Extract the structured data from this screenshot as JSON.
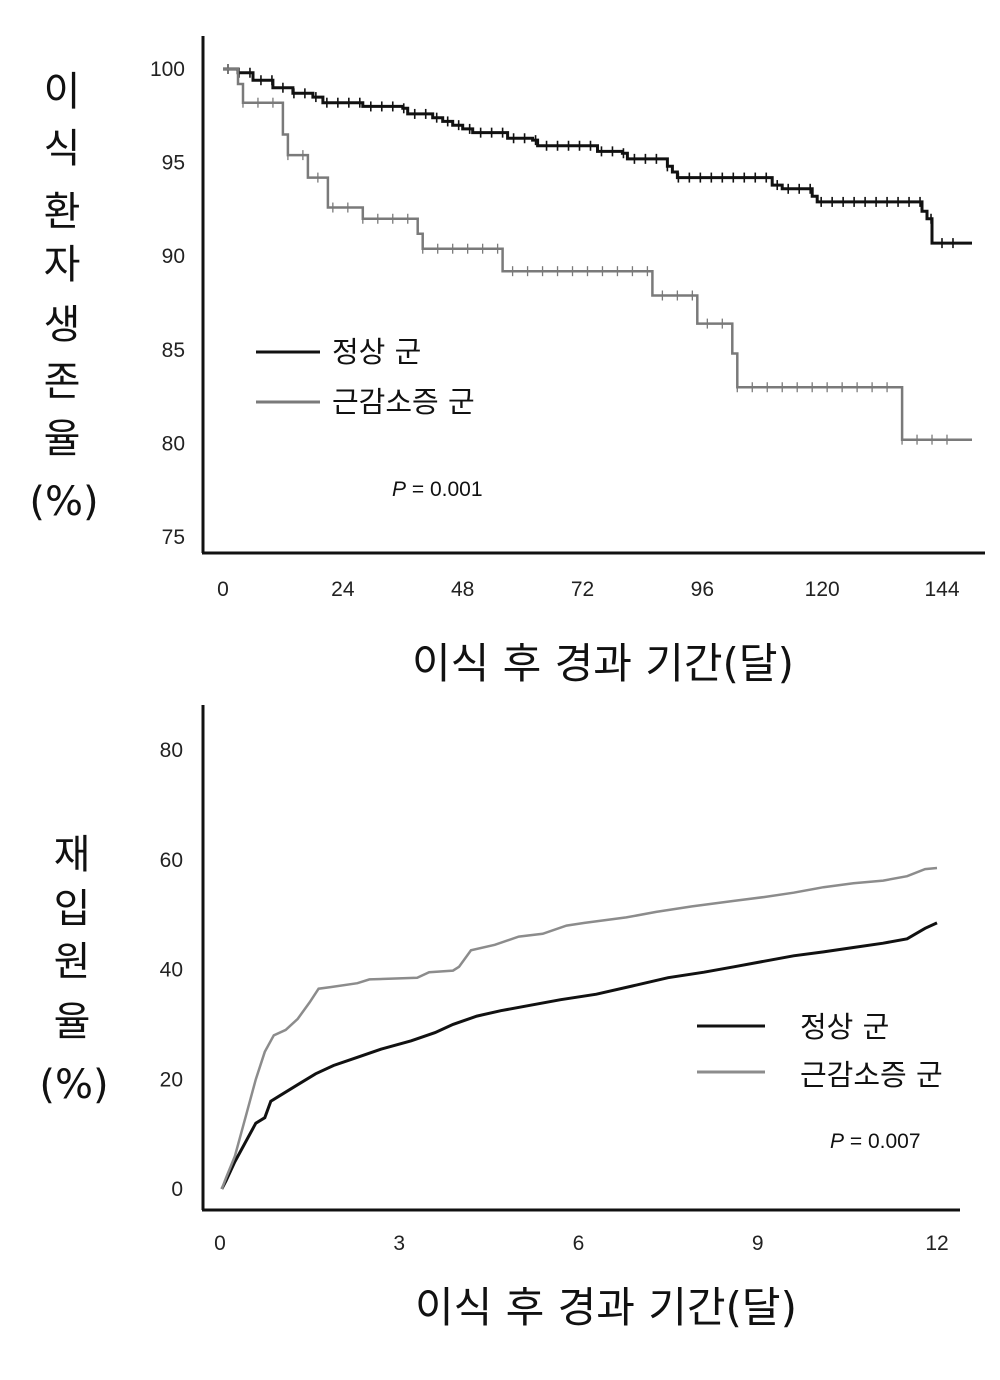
{
  "chart_data": [
    {
      "type": "line",
      "xlabel": "이식 후 경과 기간(달)",
      "ylabel_lines": [
        "이",
        "식",
        "환",
        "자",
        "생",
        "존",
        "율",
        "(%)"
      ],
      "xlim": [
        0,
        144
      ],
      "ylim": [
        75,
        100
      ],
      "x_ticks": [
        0,
        24,
        48,
        72,
        96,
        120,
        144
      ],
      "y_ticks": [
        100,
        95,
        90,
        85,
        80,
        75
      ],
      "legend_position": "middle-left",
      "annotation": {
        "p_label": "P",
        "p_value": " = 0.001"
      },
      "series": [
        {
          "name": "정상 군",
          "color": "#111111",
          "values": [
            [
              0,
              100
            ],
            [
              3,
              99.8
            ],
            [
              6,
              99.4
            ],
            [
              10,
              99
            ],
            [
              14,
              98.7
            ],
            [
              18,
              98.5
            ],
            [
              20,
              98.2
            ],
            [
              27,
              98.2
            ],
            [
              28,
              98.0
            ],
            [
              36,
              97.9
            ],
            [
              37,
              97.6
            ],
            [
              42,
              97.4
            ],
            [
              44,
              97.2
            ],
            [
              46,
              97.0
            ],
            [
              48,
              96.8
            ],
            [
              50,
              96.6
            ],
            [
              56,
              96.6
            ],
            [
              57,
              96.3
            ],
            [
              62,
              96.2
            ],
            [
              63,
              95.9
            ],
            [
              74,
              95.9
            ],
            [
              75,
              95.6
            ],
            [
              80,
              95.5
            ],
            [
              81,
              95.2
            ],
            [
              88,
              95.2
            ],
            [
              89,
              94.8
            ],
            [
              90,
              94.5
            ],
            [
              91,
              94.2
            ],
            [
              108,
              94.2
            ],
            [
              110,
              93.8
            ],
            [
              112,
              93.6
            ],
            [
              117,
              93.6
            ],
            [
              118,
              93.2
            ],
            [
              119,
              92.9
            ],
            [
              139,
              92.9
            ],
            [
              140,
              92.4
            ],
            [
              141,
              92.0
            ],
            [
              142,
              90.7
            ],
            [
              150,
              90.7
            ]
          ]
        },
        {
          "name": "근감소증 군",
          "color": "#7a7a7a",
          "values": [
            [
              0,
              100
            ],
            [
              3,
              99.2
            ],
            [
              4,
              98.2
            ],
            [
              11,
              98.2
            ],
            [
              12,
              96.5
            ],
            [
              13,
              95.4
            ],
            [
              16,
              95.4
            ],
            [
              17,
              94.2
            ],
            [
              20,
              94.2
            ],
            [
              21,
              92.6
            ],
            [
              27,
              92.6
            ],
            [
              28,
              92.0
            ],
            [
              38,
              92.0
            ],
            [
              39,
              91.2
            ],
            [
              40,
              90.4
            ],
            [
              55,
              90.4
            ],
            [
              56,
              89.2
            ],
            [
              85,
              89.2
            ],
            [
              86,
              87.9
            ],
            [
              94,
              87.9
            ],
            [
              95,
              86.4
            ],
            [
              101,
              86.4
            ],
            [
              102,
              84.8
            ],
            [
              103,
              83.0
            ],
            [
              135,
              83.0
            ],
            [
              136,
              80.2
            ],
            [
              150,
              80.2
            ]
          ]
        }
      ]
    },
    {
      "type": "line",
      "xlabel": "이식 후 경과 기간(달)",
      "ylabel_lines": [
        "재",
        "입",
        "원",
        "율",
        "(%)"
      ],
      "xlim": [
        0,
        12
      ],
      "ylim": [
        0,
        80
      ],
      "x_ticks": [
        0,
        3,
        6,
        9,
        12
      ],
      "y_ticks": [
        80,
        60,
        40,
        20,
        0
      ],
      "legend_position": "right",
      "annotation": {
        "p_label": "P",
        "p_value": " = 0.007"
      },
      "series": [
        {
          "name": "정상 군",
          "color": "#111111",
          "values": [
            [
              0.03,
              0
            ],
            [
              0.1,
              1.5
            ],
            [
              0.25,
              5
            ],
            [
              0.4,
              8
            ],
            [
              0.6,
              12
            ],
            [
              0.75,
              13
            ],
            [
              0.85,
              16
            ],
            [
              1.0,
              17
            ],
            [
              1.3,
              19
            ],
            [
              1.6,
              21
            ],
            [
              1.9,
              22.5
            ],
            [
              2.3,
              24
            ],
            [
              2.7,
              25.5
            ],
            [
              3.2,
              27
            ],
            [
              3.6,
              28.5
            ],
            [
              3.9,
              30
            ],
            [
              4.3,
              31.5
            ],
            [
              4.7,
              32.5
            ],
            [
              5.2,
              33.5
            ],
            [
              5.7,
              34.5
            ],
            [
              6.3,
              35.5
            ],
            [
              6.9,
              37
            ],
            [
              7.5,
              38.5
            ],
            [
              8.1,
              39.5
            ],
            [
              8.6,
              40.5
            ],
            [
              9.1,
              41.5
            ],
            [
              9.6,
              42.5
            ],
            [
              10.1,
              43.2
            ],
            [
              10.6,
              44
            ],
            [
              11.1,
              44.8
            ],
            [
              11.5,
              45.6
            ],
            [
              11.8,
              47.5
            ],
            [
              12.0,
              48.5
            ]
          ]
        },
        {
          "name": "근감소증 군",
          "color": "#8c8c8c",
          "values": [
            [
              0.03,
              0
            ],
            [
              0.1,
              2
            ],
            [
              0.25,
              6
            ],
            [
              0.45,
              14
            ],
            [
              0.6,
              20
            ],
            [
              0.75,
              25
            ],
            [
              0.9,
              28
            ],
            [
              1.1,
              29
            ],
            [
              1.3,
              31
            ],
            [
              1.5,
              34
            ],
            [
              1.65,
              36.5
            ],
            [
              1.85,
              36.8
            ],
            [
              2.3,
              37.5
            ],
            [
              2.5,
              38.2
            ],
            [
              3.3,
              38.5
            ],
            [
              3.5,
              39.5
            ],
            [
              3.9,
              39.8
            ],
            [
              4.0,
              40.5
            ],
            [
              4.2,
              43.5
            ],
            [
              4.6,
              44.5
            ],
            [
              5.0,
              46
            ],
            [
              5.4,
              46.5
            ],
            [
              5.8,
              48
            ],
            [
              6.1,
              48.5
            ],
            [
              6.8,
              49.5
            ],
            [
              7.3,
              50.5
            ],
            [
              7.9,
              51.5
            ],
            [
              8.6,
              52.5
            ],
            [
              9.1,
              53.2
            ],
            [
              9.6,
              54
            ],
            [
              10.1,
              55
            ],
            [
              10.6,
              55.7
            ],
            [
              11.1,
              56.2
            ],
            [
              11.5,
              57
            ],
            [
              11.8,
              58.3
            ],
            [
              12.0,
              58.5
            ]
          ]
        }
      ]
    }
  ]
}
